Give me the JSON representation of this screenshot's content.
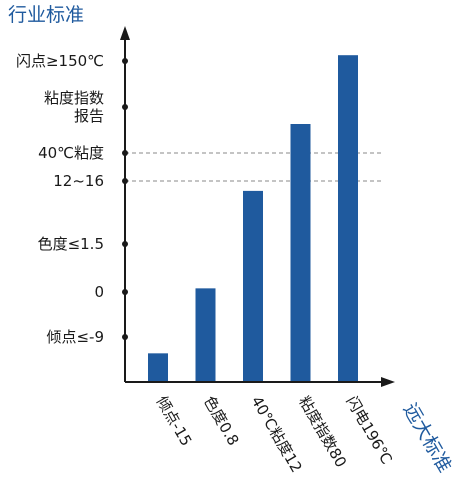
{
  "chart_data": {
    "type": "bar",
    "ylabel": "行业标准",
    "xlabel": "远大标准",
    "y_ticks": [
      "闪点≥150℃",
      "粘度指数\n报告",
      "40℃粘度",
      "12~16",
      "色度≤1.5",
      "0",
      "倾点≤-9"
    ],
    "categories": [
      "倾点-15",
      "色度0.8",
      "40℃粘度12",
      "粘度指数80",
      "闪电196℃"
    ],
    "values": [
      30,
      98,
      200,
      270,
      342
    ],
    "ylim": [
      0,
      360
    ],
    "dashed_reference_lines": [
      "40℃粘度",
      "12~16"
    ],
    "grid": false,
    "colors": {
      "bar": "#1f5a9e",
      "axis": "#1a1a1a",
      "title": "#1f5a9e",
      "dash": "#8a8a8a"
    }
  }
}
